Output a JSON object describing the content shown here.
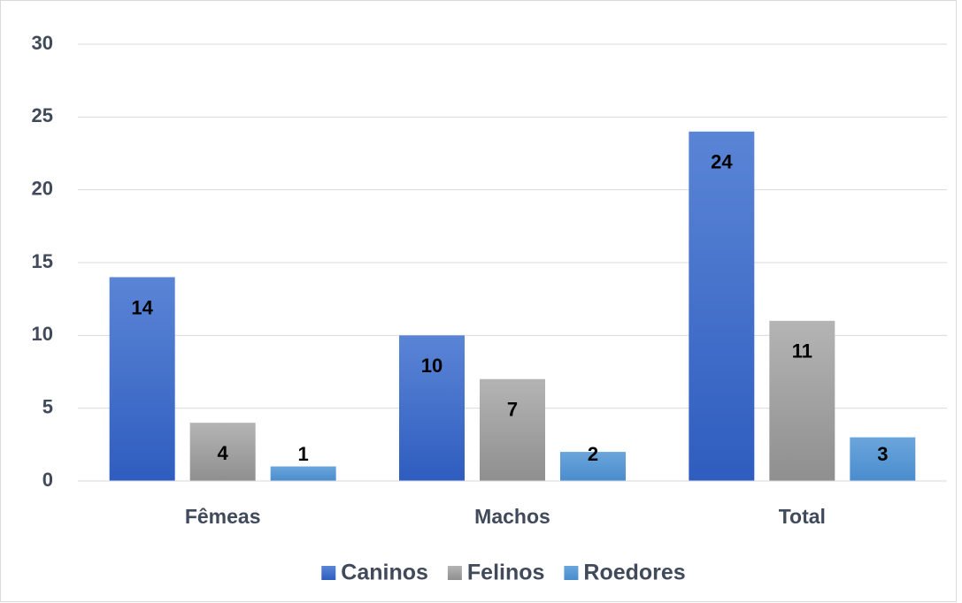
{
  "chart_data": {
    "type": "bar",
    "categories": [
      "Fêmeas",
      "Machos",
      "Total"
    ],
    "series": [
      {
        "name": "Caninos",
        "color": "#4472c4",
        "values": [
          14,
          10,
          24
        ]
      },
      {
        "name": "Felinos",
        "color": "#a5a5a5",
        "values": [
          4,
          7,
          11
        ]
      },
      {
        "name": "Roedores",
        "color": "#5b9bd5",
        "values": [
          1,
          2,
          3
        ]
      }
    ],
    "ylim": [
      0,
      30
    ],
    "yticks": [
      0,
      5,
      10,
      15,
      20,
      25,
      30
    ],
    "grid": true,
    "legend": "bottom"
  }
}
